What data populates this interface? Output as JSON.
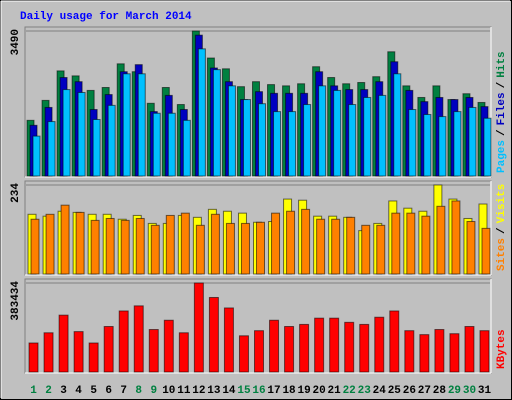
{
  "chart_data": [
    {
      "type": "bar",
      "title": "Daily usage for March 2014",
      "legend_separator": "/",
      "ylim": [
        0,
        3490
      ],
      "yticks": [
        3490
      ],
      "series": [
        {
          "name": "Hits",
          "color": "#008040",
          "values": [
            1340,
            1820,
            2530,
            2410,
            2060,
            2130,
            2700,
            2510,
            1750,
            2130,
            1720,
            3490,
            2840,
            2580,
            2150,
            2270,
            2200,
            2170,
            2220,
            2630,
            2370,
            2220,
            2250,
            2390,
            2990,
            2170,
            1890,
            2170,
            1840,
            1980,
            1770
          ]
        },
        {
          "name": "Files",
          "color": "#0000c0",
          "values": [
            1220,
            1650,
            2370,
            2270,
            1600,
            1960,
            2510,
            2680,
            1550,
            1940,
            1600,
            3390,
            2600,
            2270,
            1840,
            2030,
            1990,
            1990,
            1990,
            2510,
            2170,
            2080,
            2080,
            2270,
            2750,
            2060,
            1790,
            1890,
            1840,
            1890,
            1670
          ]
        },
        {
          "name": "Pages",
          "color": "#00c0ff",
          "values": [
            960,
            1310,
            2080,
            2010,
            1360,
            1700,
            2460,
            2460,
            1510,
            1510,
            1340,
            3060,
            2560,
            2170,
            1840,
            1740,
            1550,
            1550,
            1720,
            2170,
            2060,
            1720,
            1890,
            1940,
            2460,
            1600,
            1480,
            1430,
            1550,
            1650,
            1390
          ]
        }
      ]
    },
    {
      "type": "bar",
      "legend_separator": "/",
      "ylim": [
        0,
        234
      ],
      "yticks": [
        234
      ],
      "series": [
        {
          "name": "Visits",
          "color": "#ffff00",
          "values": [
            157,
            152,
            165,
            162,
            157,
            157,
            144,
            154,
            133,
            133,
            154,
            149,
            170,
            165,
            160,
            136,
            138,
            197,
            194,
            152,
            152,
            149,
            114,
            133,
            192,
            173,
            165,
            234,
            197,
            146,
            184
          ]
        },
        {
          "name": "Sites",
          "color": "#ff8000",
          "values": [
            144,
            157,
            181,
            162,
            141,
            146,
            141,
            146,
            128,
            154,
            160,
            128,
            157,
            133,
            133,
            136,
            160,
            165,
            170,
            144,
            144,
            149,
            128,
            128,
            160,
            160,
            152,
            178,
            192,
            138,
            120
          ]
        }
      ]
    },
    {
      "type": "bar",
      "ylim": [
        0,
        383434
      ],
      "yticks": [
        383434
      ],
      "categories": [
        "1",
        "2",
        "3",
        "4",
        "5",
        "6",
        "7",
        "8",
        "9",
        "10",
        "11",
        "12",
        "13",
        "14",
        "15",
        "16",
        "17",
        "18",
        "19",
        "20",
        "21",
        "22",
        "23",
        "24",
        "25",
        "26",
        "27",
        "28",
        "29",
        "30",
        "31"
      ],
      "category_colors": [
        "#008040",
        "#008040",
        "#000000",
        "#000000",
        "#000000",
        "#000000",
        "#000000",
        "#008040",
        "#008040",
        "#000000",
        "#000000",
        "#000000",
        "#000000",
        "#000000",
        "#008040",
        "#008040",
        "#000000",
        "#000000",
        "#000000",
        "#000000",
        "#000000",
        "#008040",
        "#008040",
        "#000000",
        "#000000",
        "#000000",
        "#000000",
        "#000000",
        "#008040",
        "#008040",
        "#000000"
      ],
      "series": [
        {
          "name": "KBytes",
          "color": "#ff0000",
          "values": [
            125000,
            169000,
            245000,
            174000,
            125000,
            196000,
            263000,
            285000,
            183000,
            223000,
            169000,
            383434,
            321000,
            276000,
            156000,
            178000,
            223000,
            196000,
            205000,
            232000,
            232000,
            214000,
            205000,
            236000,
            263000,
            178000,
            161000,
            183000,
            165000,
            196000,
            178000
          ]
        }
      ]
    }
  ]
}
